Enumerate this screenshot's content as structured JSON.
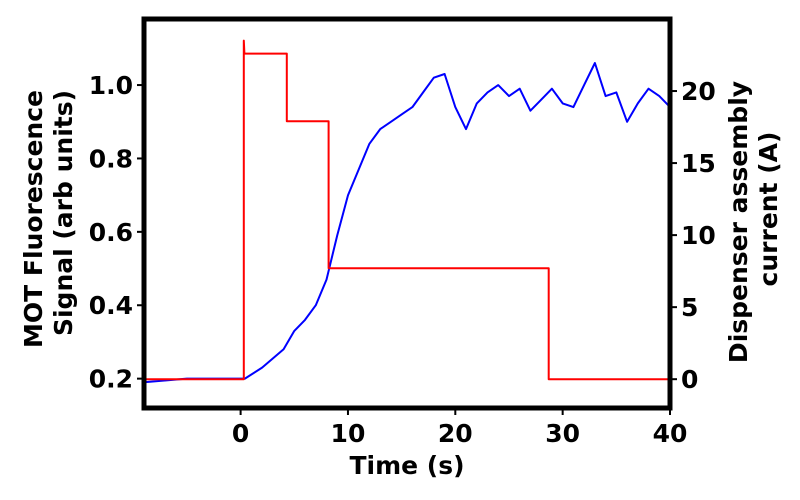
{
  "chart_data": {
    "type": "line",
    "xlabel": "Time (s)",
    "ylabel_left_line1": "MOT Fluorescence",
    "ylabel_left_line2": "Signal (arb units)",
    "ylabel_right_line1": "Dispenser assembly",
    "ylabel_right_line2": "current (A)",
    "xlim": [
      -9,
      40
    ],
    "ylim_left": [
      0.12,
      1.18
    ],
    "ylim_right": [
      -2,
      25
    ],
    "x_ticks": [
      0,
      10,
      20,
      30,
      40
    ],
    "x_tick_labels": [
      "0",
      "10",
      "20",
      "30",
      "40"
    ],
    "y_left_ticks": [
      0.2,
      0.4,
      0.6,
      0.8,
      1.0
    ],
    "y_left_tick_labels": [
      "0.2",
      "0.4",
      "0.6",
      "0.8",
      "1.0"
    ],
    "y_right_ticks": [
      0,
      5,
      10,
      15,
      20
    ],
    "y_right_tick_labels": [
      "0",
      "5",
      "10",
      "15",
      "20"
    ],
    "grid": false,
    "series": [
      {
        "axis": "left",
        "color": "#0000ff",
        "x": [
          -9,
          -5,
          0,
          0.4,
          2,
          4,
          5,
          6,
          7,
          8,
          9,
          10,
          11,
          12,
          13,
          14,
          15,
          16,
          17,
          18,
          19,
          20,
          21,
          22,
          23,
          24,
          25,
          26,
          27,
          28,
          29,
          30,
          31,
          32,
          33,
          34,
          35,
          36,
          37,
          38,
          39,
          40
        ],
        "values": [
          0.19,
          0.2,
          0.2,
          0.2,
          0.23,
          0.28,
          0.33,
          0.36,
          0.4,
          0.47,
          0.59,
          0.7,
          0.77,
          0.84,
          0.88,
          0.9,
          0.92,
          0.94,
          0.98,
          1.02,
          1.03,
          0.94,
          0.88,
          0.95,
          0.98,
          1.0,
          0.97,
          0.99,
          0.93,
          0.96,
          0.99,
          0.95,
          0.94,
          1.0,
          1.06,
          0.97,
          0.98,
          0.9,
          0.95,
          0.99,
          0.97,
          0.94
        ]
      },
      {
        "axis": "right",
        "color": "#ff0000",
        "x": [
          -9,
          0.3,
          0.3,
          0.35,
          4.3,
          4.3,
          8.2,
          8.2,
          28.7,
          28.7,
          40
        ],
        "values": [
          0,
          0,
          23.5,
          22.6,
          22.6,
          17.9,
          17.9,
          7.7,
          7.7,
          0,
          0
        ]
      }
    ]
  }
}
